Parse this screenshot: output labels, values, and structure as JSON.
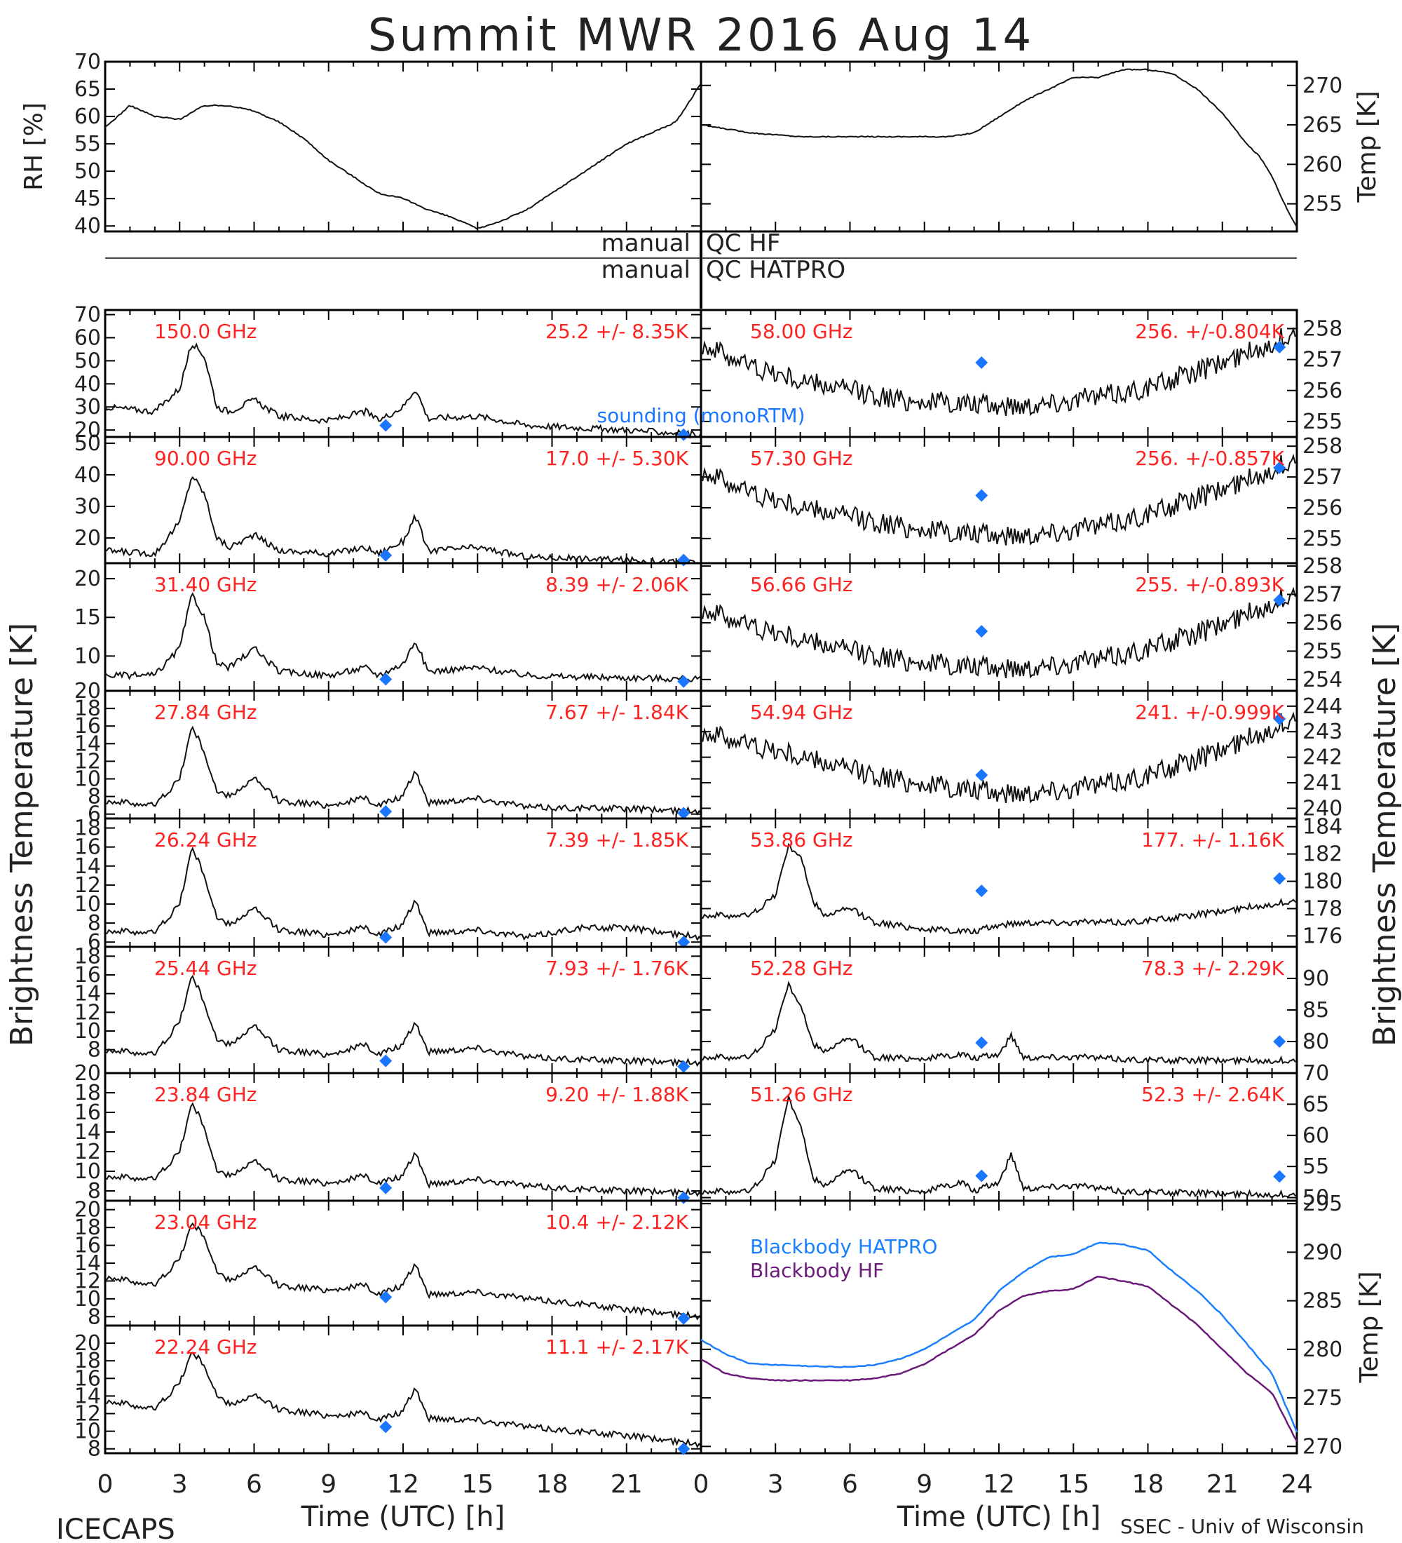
{
  "title": "Summit MWR 2016 Aug 14",
  "qc_left": "manual",
  "qc_right_1": "QC HF",
  "qc_right_2": "QC HATPRO",
  "left_ylabel": "Brightness Temperature [K]",
  "right_ylabel": "Brightness Temperature [K]",
  "xlabel": "Time (UTC) [h]",
  "footer_left": "ICECAPS",
  "footer_right": "SSEC - Univ of Wisconsin",
  "sounding_label": "sounding (monoRTM)",
  "colors": {
    "data": "#111111",
    "freq_label": "#ff2020",
    "sounding": "#1a75ff",
    "bb_hatpro": "#1a7fff",
    "bb_hf": "#6a1b7a"
  },
  "chart_data": [
    {
      "id": "rh",
      "type": "line",
      "ylabel": "RH [%]",
      "ylim": [
        39,
        70
      ],
      "yticks": [
        40,
        45,
        50,
        55,
        60,
        65,
        70
      ],
      "xlim": [
        0,
        24
      ],
      "x": [
        0,
        1,
        2,
        3,
        4,
        5,
        6,
        7,
        8,
        9,
        10,
        11,
        12,
        13,
        14,
        15,
        16,
        17,
        18,
        19,
        20,
        21,
        22,
        23,
        24
      ],
      "values": [
        58,
        62,
        60,
        59.5,
        62,
        62,
        61,
        59,
        56,
        52,
        49,
        46,
        45,
        43,
        41.5,
        39.5,
        41,
        43,
        46,
        49,
        52,
        55,
        57,
        59,
        66
      ]
    },
    {
      "id": "temp",
      "type": "line",
      "ylabel": "Temp [K]",
      "ylim": [
        251.5,
        273
      ],
      "yticks": [
        255,
        260,
        265,
        270
      ],
      "side": "right",
      "xlim": [
        0,
        24
      ],
      "x": [
        0,
        2,
        4,
        6,
        8,
        10,
        11,
        12,
        13,
        14,
        15,
        16,
        17,
        18,
        19,
        20,
        21,
        22,
        22.5,
        23,
        23.5,
        24
      ],
      "values": [
        265,
        264,
        263.5,
        263.5,
        263.5,
        263.5,
        264,
        266,
        268,
        269.5,
        271,
        271,
        272,
        272,
        271.5,
        269.5,
        266.5,
        262.5,
        261,
        258.5,
        255,
        252
      ]
    },
    {
      "id": "ch150",
      "type": "line",
      "label": "150.0 GHz",
      "stats": "25.2 +/-  8.35K",
      "ylim": [
        17,
        72
      ],
      "yticks": [
        20,
        30,
        40,
        50,
        60,
        70
      ],
      "side": "left",
      "xlim": [
        0,
        24
      ],
      "x": [
        0,
        2,
        3,
        3.5,
        4,
        4.5,
        5,
        6,
        7,
        9,
        10.5,
        11,
        12,
        12.5,
        13,
        15,
        17,
        19,
        21,
        24
      ],
      "values": [
        30,
        28,
        38,
        58,
        52,
        30,
        28,
        33,
        26,
        24,
        28,
        24,
        30,
        38,
        25,
        26,
        22,
        21,
        20,
        18
      ],
      "sounding": [
        {
          "x": 11.3,
          "y": 22
        },
        {
          "x": 23.3,
          "y": 18
        }
      ]
    },
    {
      "id": "ch90",
      "type": "line",
      "label": "90.00 GHz",
      "stats": "17.0 +/-  5.30K",
      "ylim": [
        12,
        52
      ],
      "yticks": [
        20,
        30,
        40,
        50
      ],
      "side": "left",
      "xlim": [
        0,
        24
      ],
      "x": [
        0,
        2,
        3,
        3.5,
        4,
        4.5,
        5,
        6,
        7,
        9,
        10.5,
        11,
        12,
        12.5,
        13,
        15,
        17,
        19,
        21,
        24
      ],
      "values": [
        16,
        15,
        25,
        40,
        34,
        20,
        17,
        21,
        16,
        15,
        17,
        15,
        19,
        27,
        16,
        17,
        14,
        13.5,
        13,
        12
      ],
      "sounding": [
        {
          "x": 11.3,
          "y": 14.5
        },
        {
          "x": 23.3,
          "y": 13
        }
      ]
    },
    {
      "id": "ch31p4",
      "type": "line",
      "label": "31.40 GHz",
      "stats": "8.39 +/- 2.06K",
      "ylim": [
        5.5,
        22
      ],
      "yticks": [
        10,
        15,
        20
      ],
      "side": "left",
      "xlim": [
        0,
        24
      ],
      "x": [
        0,
        2,
        3,
        3.5,
        4,
        4.5,
        5,
        6,
        7,
        9,
        10.5,
        11,
        12,
        12.5,
        13,
        15,
        17,
        19,
        21,
        24
      ],
      "values": [
        7.5,
        7.5,
        11,
        18,
        15,
        9,
        8.5,
        11,
        8,
        7.5,
        8.5,
        7.5,
        9,
        12,
        8,
        8.5,
        7.5,
        7.3,
        7.2,
        7
      ],
      "sounding": [
        {
          "x": 11.3,
          "y": 7
        },
        {
          "x": 23.3,
          "y": 6.7
        }
      ]
    },
    {
      "id": "ch27p84",
      "type": "line",
      "label": "27.84 GHz",
      "stats": "7.67 +/- 1.84K",
      "ylim": [
        5.5,
        20
      ],
      "yticks": [
        6,
        8,
        10,
        12,
        14,
        16,
        18,
        20
      ],
      "side": "left",
      "xlim": [
        0,
        24
      ],
      "x": [
        0,
        2,
        3,
        3.5,
        4,
        4.5,
        5,
        6,
        7,
        9,
        10.5,
        11,
        12,
        12.5,
        13,
        15,
        17,
        19,
        21,
        24
      ],
      "values": [
        7.5,
        7,
        10,
        16,
        13,
        8.5,
        8,
        10,
        7.5,
        7,
        7.8,
        7,
        8,
        11,
        7.3,
        7.8,
        6.8,
        6.7,
        6.6,
        6.3
      ],
      "sounding": [
        {
          "x": 11.3,
          "y": 6.3
        },
        {
          "x": 23.3,
          "y": 6.1
        }
      ]
    },
    {
      "id": "ch26p24",
      "type": "line",
      "label": "26.24 GHz",
      "stats": "7.39 +/- 1.85K",
      "ylim": [
        5.5,
        19
      ],
      "yticks": [
        6,
        8,
        10,
        12,
        14,
        16,
        18
      ],
      "side": "left",
      "xlim": [
        0,
        24
      ],
      "x": [
        0,
        2,
        3,
        3.5,
        4,
        4.5,
        5,
        6,
        7,
        9,
        10.5,
        11,
        12,
        12.5,
        13,
        15,
        17,
        19,
        21,
        24
      ],
      "values": [
        7.2,
        7,
        10,
        16,
        13,
        8.5,
        7.8,
        9.5,
        7.3,
        6.8,
        7.5,
        6.8,
        7.8,
        10.5,
        7,
        7.3,
        6.5,
        7.5,
        7.5,
        6.5
      ],
      "sounding": [
        {
          "x": 11.3,
          "y": 6.5
        },
        {
          "x": 23.3,
          "y": 6
        }
      ]
    },
    {
      "id": "ch25p44",
      "type": "line",
      "label": "25.44 GHz",
      "stats": "7.93 +/- 1.76K",
      "ylim": [
        5.5,
        19
      ],
      "yticks": [
        8,
        10,
        12,
        14,
        16,
        18
      ],
      "side": "left",
      "xlim": [
        0,
        24
      ],
      "x": [
        0,
        2,
        3,
        3.5,
        4,
        4.5,
        5,
        6,
        7,
        9,
        10.5,
        11,
        12,
        12.5,
        13,
        15,
        17,
        19,
        21,
        24
      ],
      "values": [
        8,
        7.5,
        11,
        16,
        13,
        9,
        8.5,
        10.5,
        8,
        7.5,
        8.5,
        7.5,
        8.5,
        11,
        7.8,
        8.2,
        7.2,
        7,
        6.8,
        6.6
      ],
      "sounding": [
        {
          "x": 11.3,
          "y": 6.8
        },
        {
          "x": 23.3,
          "y": 6.2
        }
      ]
    },
    {
      "id": "ch23p84",
      "type": "line",
      "label": "23.84 GHz",
      "stats": "9.20 +/- 1.88K",
      "ylim": [
        7,
        20
      ],
      "yticks": [
        8,
        10,
        12,
        14,
        16,
        18,
        20
      ],
      "side": "left",
      "xlim": [
        0,
        24
      ],
      "x": [
        0,
        2,
        3,
        3.5,
        4,
        4.5,
        5,
        6,
        7,
        9,
        10.5,
        11,
        12,
        12.5,
        13,
        15,
        17,
        19,
        21,
        24
      ],
      "values": [
        9.5,
        9.2,
        12,
        17,
        14.5,
        10,
        9.5,
        11,
        9.2,
        8.8,
        9.5,
        8.8,
        9.5,
        12,
        8.7,
        9.2,
        8.5,
        8.2,
        8,
        7.8
      ],
      "sounding": [
        {
          "x": 11.3,
          "y": 8.3
        },
        {
          "x": 23.3,
          "y": 7.3
        }
      ]
    },
    {
      "id": "ch23p04",
      "type": "line",
      "label": "23.04 GHz",
      "stats": "10.4 +/- 2.12K",
      "ylim": [
        7,
        21
      ],
      "yticks": [
        8,
        10,
        12,
        14,
        16,
        18,
        20
      ],
      "side": "left",
      "xlim": [
        0,
        24
      ],
      "x": [
        0,
        2,
        3,
        3.5,
        4,
        4.5,
        5,
        6,
        7,
        9,
        10.5,
        11,
        12,
        12.5,
        13,
        15,
        17,
        19,
        21,
        24
      ],
      "values": [
        12.5,
        11.5,
        14.5,
        18.5,
        17,
        13,
        12,
        13.5,
        11.5,
        11,
        11.5,
        10.5,
        11.5,
        14,
        10.5,
        10.8,
        10,
        9.5,
        8.8,
        8
      ],
      "sounding": [
        {
          "x": 11.3,
          "y": 10.2
        },
        {
          "x": 23.3,
          "y": 7.8
        }
      ]
    },
    {
      "id": "ch22p24",
      "type": "line",
      "label": "22.24 GHz",
      "stats": "11.1 +/- 2.17K",
      "ylim": [
        7.5,
        22
      ],
      "yticks": [
        8,
        10,
        12,
        14,
        16,
        18,
        20
      ],
      "side": "left",
      "xlim": [
        0,
        24
      ],
      "x": [
        0,
        2,
        3,
        3.5,
        4,
        4.5,
        5,
        6,
        7,
        9,
        10.5,
        11,
        12,
        12.5,
        13,
        15,
        17,
        19,
        21,
        24
      ],
      "values": [
        13.5,
        12.5,
        15.5,
        19,
        17.5,
        14,
        13,
        14,
        12.5,
        11.8,
        12,
        11.3,
        12.2,
        15,
        11.5,
        11.3,
        10.5,
        10,
        9.5,
        8.5
      ],
      "sounding": [
        {
          "x": 11.3,
          "y": 10.5
        },
        {
          "x": 23.3,
          "y": 8
        }
      ]
    },
    {
      "id": "ch58p00",
      "type": "line",
      "label": "58.00 GHz",
      "stats": "256. +/-0.804K",
      "ylim": [
        254.5,
        258.6
      ],
      "yticks": [
        255,
        256,
        257,
        258
      ],
      "side": "right",
      "xlim": [
        0,
        24
      ],
      "x": [
        0,
        2,
        4,
        6,
        8,
        10,
        12,
        14,
        16,
        18,
        20,
        22,
        24
      ],
      "values": [
        257.5,
        256.8,
        256.3,
        256,
        255.7,
        255.6,
        255.5,
        255.6,
        255.8,
        256.1,
        256.6,
        257.2,
        257.9
      ],
      "sounding": [
        {
          "x": 11.3,
          "y": 256.9
        },
        {
          "x": 23.3,
          "y": 257.4
        }
      ]
    },
    {
      "id": "ch57p30",
      "type": "line",
      "label": "57.30 GHz",
      "stats": "256. +/-0.857K",
      "ylim": [
        254.2,
        258.3
      ],
      "yticks": [
        255,
        256,
        257,
        258
      ],
      "side": "right",
      "xlim": [
        0,
        24
      ],
      "x": [
        0,
        2,
        4,
        6,
        8,
        10,
        12,
        14,
        16,
        18,
        20,
        22,
        24
      ],
      "values": [
        257.2,
        256.5,
        256,
        255.7,
        255.4,
        255.2,
        255.1,
        255.2,
        255.4,
        255.8,
        256.3,
        256.9,
        257.6
      ],
      "sounding": [
        {
          "x": 11.3,
          "y": 256.4
        },
        {
          "x": 23.3,
          "y": 257.3
        }
      ]
    },
    {
      "id": "ch56p66",
      "type": "line",
      "label": "56.66 GHz",
      "stats": "255. +/-0.893K",
      "ylim": [
        253.6,
        258.1
      ],
      "yticks": [
        254,
        255,
        256,
        257,
        258
      ],
      "side": "right",
      "xlim": [
        0,
        24
      ],
      "x": [
        0,
        2,
        4,
        6,
        8,
        10,
        12,
        14,
        16,
        18,
        20,
        22,
        24
      ],
      "values": [
        256.5,
        255.9,
        255.4,
        255,
        254.7,
        254.5,
        254.4,
        254.5,
        254.7,
        255.1,
        255.6,
        256.3,
        257.1
      ],
      "sounding": [
        {
          "x": 11.3,
          "y": 255.7
        },
        {
          "x": 23.3,
          "y": 256.8
        }
      ]
    },
    {
      "id": "ch54p94",
      "type": "line",
      "label": "54.94 GHz",
      "stats": "241. +/-0.999K",
      "ylim": [
        239.6,
        244.6
      ],
      "yticks": [
        240,
        241,
        242,
        243,
        244
      ],
      "side": "right",
      "xlim": [
        0,
        24
      ],
      "x": [
        0,
        2,
        4,
        6,
        8,
        10,
        12,
        14,
        16,
        18,
        20,
        22,
        24
      ],
      "values": [
        243,
        242.5,
        242,
        241.5,
        241.1,
        240.8,
        240.6,
        240.7,
        240.9,
        241.3,
        241.9,
        242.7,
        243.6
      ],
      "sounding": [
        {
          "x": 11.3,
          "y": 241.3
        },
        {
          "x": 23.3,
          "y": 243.5
        }
      ]
    },
    {
      "id": "ch53p86",
      "type": "line",
      "label": "53.86 GHz",
      "stats": "177. +/- 1.16K",
      "ylim": [
        175.2,
        184.6
      ],
      "yticks": [
        176,
        178,
        180,
        182,
        184
      ],
      "side": "right",
      "xlim": [
        0,
        24
      ],
      "x": [
        0,
        2,
        3,
        3.5,
        4,
        4.5,
        5,
        6,
        7,
        9,
        11,
        12,
        13,
        15,
        17,
        19,
        21,
        24
      ],
      "values": [
        177.5,
        177.5,
        179,
        182.5,
        182,
        178.5,
        177.5,
        178,
        177,
        176.5,
        176.3,
        176.8,
        177,
        177,
        177,
        177.3,
        177.8,
        178.6
      ],
      "sounding": [
        {
          "x": 11.3,
          "y": 179.3
        },
        {
          "x": 23.3,
          "y": 180.2
        }
      ]
    },
    {
      "id": "ch52p28",
      "type": "line",
      "label": "52.28 GHz",
      "stats": "78.3 +/- 2.29K",
      "ylim": [
        75,
        95
      ],
      "yticks": [
        80,
        85,
        90
      ],
      "side": "right",
      "xlim": [
        0,
        24
      ],
      "x": [
        0,
        2,
        3,
        3.5,
        4,
        4.5,
        5,
        6,
        7,
        9,
        10.5,
        11,
        12,
        12.5,
        13,
        15,
        17,
        19,
        21,
        24
      ],
      "values": [
        77.5,
        77.5,
        82,
        89,
        86,
        79.5,
        78.5,
        80.5,
        77.5,
        77.3,
        78,
        77.3,
        78,
        81,
        77.5,
        77.6,
        77.2,
        77,
        77,
        77
      ],
      "sounding": [
        {
          "x": 11.3,
          "y": 79.8
        },
        {
          "x": 23.3,
          "y": 80
        }
      ]
    },
    {
      "id": "ch51p26",
      "type": "line",
      "label": "51.26 GHz",
      "stats": "52.3 +/- 2.64K",
      "ylim": [
        49.5,
        70
      ],
      "yticks": [
        50,
        55,
        60,
        65,
        70
      ],
      "side": "right",
      "xlim": [
        0,
        24
      ],
      "x": [
        0,
        2,
        3,
        3.5,
        4,
        4.5,
        5,
        6,
        7,
        9,
        10.5,
        11,
        12,
        12.5,
        13,
        15,
        17,
        19,
        21,
        24
      ],
      "values": [
        51,
        51,
        56,
        66,
        62,
        53,
        52,
        54.5,
        51.5,
        51,
        52.5,
        51,
        52.5,
        57,
        51.5,
        52,
        51,
        50.8,
        50.6,
        50.5
      ],
      "sounding": [
        {
          "x": 11.3,
          "y": 53.5
        },
        {
          "x": 23.3,
          "y": 53.4
        }
      ]
    },
    {
      "id": "blackbody",
      "type": "line",
      "ylabel": "Temp [K]",
      "ylim": [
        269.3,
        295.3
      ],
      "yticks": [
        270,
        275,
        280,
        285,
        290,
        295
      ],
      "side": "right",
      "xlim": [
        0,
        24
      ],
      "x": [
        0,
        1,
        2,
        3,
        4,
        5,
        6,
        7,
        8,
        9,
        10,
        11,
        12,
        13,
        14,
        15,
        16,
        17,
        18,
        19,
        20,
        21,
        22,
        23,
        24
      ],
      "series": [
        {
          "name": "Blackbody HATPRO",
          "values": [
            281,
            279.5,
            278.5,
            278.4,
            278.3,
            278.2,
            278.2,
            278.4,
            279,
            280,
            281.5,
            283,
            286,
            288,
            289.5,
            289.8,
            291,
            290.8,
            290.2,
            288,
            286,
            283.5,
            280.5,
            277.5,
            271.5
          ]
        },
        {
          "name": "Blackbody HF",
          "values": [
            279,
            277.5,
            277,
            276.8,
            276.8,
            276.8,
            276.8,
            277,
            277.5,
            278.5,
            280,
            281.5,
            284,
            285.5,
            286,
            286.2,
            287.5,
            287,
            286.5,
            284.5,
            282.5,
            280,
            277.5,
            275.5,
            270.5
          ]
        }
      ]
    }
  ]
}
